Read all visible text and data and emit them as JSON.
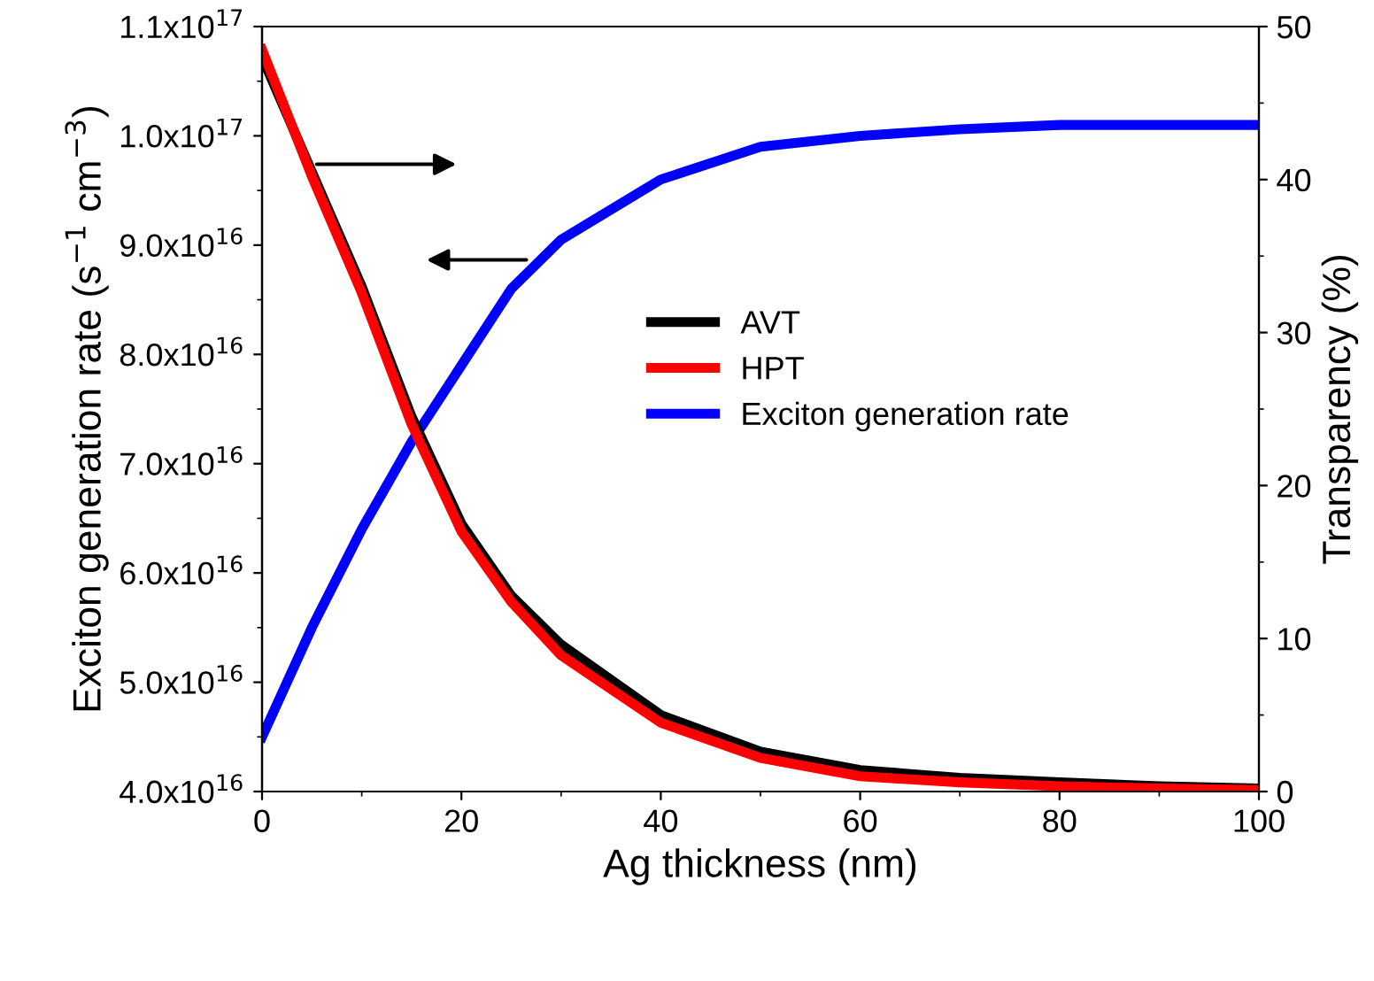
{
  "chart_data": {
    "type": "line",
    "xlabel": "Ag thickness (nm)",
    "ylabel": "Exciton generation rate (s$^{−1}$ cm$^{−3}$)",
    "y2label": "Transparency (%)",
    "xlim": [
      0,
      100
    ],
    "xticks": [
      0,
      20,
      40,
      60,
      80,
      100
    ],
    "ylim": [
      4e+16,
      1.1e+17
    ],
    "yticks": [
      {
        "value": 4e+16,
        "label": "4.0x10$^{16}$"
      },
      {
        "value": 5e+16,
        "label": "5.0x10$^{16}$"
      },
      {
        "value": 6e+16,
        "label": "6.0x10$^{16}$"
      },
      {
        "value": 7e+16,
        "label": "7.0x10$^{16}$"
      },
      {
        "value": 8e+16,
        "label": "8.0x10$^{16}$"
      },
      {
        "value": 9e+16,
        "label": "9.0x10$^{16}$"
      },
      {
        "value": 1e+17,
        "label": "1.0x10$^{17}$"
      },
      {
        "value": 1.1e+17,
        "label": "1.1x10$^{17}$"
      }
    ],
    "y2lim": [
      0,
      50
    ],
    "y2ticks": [
      0,
      10,
      20,
      30,
      40,
      50
    ],
    "legend": "center",
    "grid": false,
    "series": [
      {
        "name": "AVT",
        "color": "#000000",
        "axis": "y2",
        "x": [
          0,
          5,
          10,
          15,
          20,
          25,
          30,
          40,
          50,
          60,
          70,
          80,
          90,
          100
        ],
        "values": [
          48,
          40.5,
          33,
          24.5,
          17.5,
          12.8,
          9.6,
          5.0,
          2.6,
          1.4,
          0.9,
          0.6,
          0.35,
          0.2
        ]
      },
      {
        "name": "HPT",
        "color": "#ff0000",
        "axis": "y2",
        "x": [
          0,
          5,
          10,
          15,
          20,
          25,
          30,
          40,
          50,
          60,
          70,
          80,
          90,
          100
        ],
        "values": [
          48.5,
          40.2,
          32.6,
          24,
          17,
          12.4,
          8.9,
          4.5,
          2.2,
          1.0,
          0.6,
          0.35,
          0.2,
          0.1
        ]
      },
      {
        "name": "Exciton generation rate",
        "color": "#0000ff",
        "axis": "y",
        "x": [
          0,
          5,
          10,
          15,
          20,
          25,
          30,
          40,
          50,
          60,
          70,
          80,
          90,
          100
        ],
        "values": [
          4.5e+16,
          5.5e+16,
          6.4e+16,
          7.2e+16,
          7.9e+16,
          8.6e+16,
          9.05e+16,
          9.6e+16,
          9.9e+16,
          1e+17,
          1.006e+17,
          1.01e+17,
          1.01e+17,
          1.01e+17
        ]
      }
    ]
  }
}
